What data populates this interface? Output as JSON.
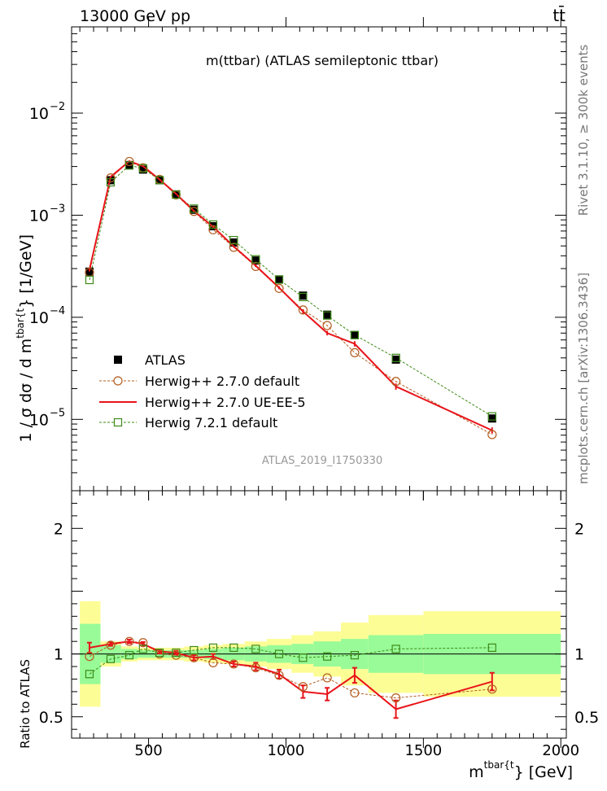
{
  "header": {
    "left": "13000 GeV pp",
    "right": "tt̄"
  },
  "side_labels": {
    "rivet": "Rivet 3.1.10, ≥ 300k events",
    "mcplots": "mcplots.cern.ch [arXiv:1306.3436]"
  },
  "chart_data": {
    "type": "line",
    "title": "m(ttbar) (ATLAS semileptonic ttbar)",
    "analysis_id": "ATLAS_2019_I1750330",
    "xlabel_main": "m",
    "xlabel_sup": "tbar{t",
    "xlabel_tail": "} [GeV]",
    "ylabel_main": "1 / σ dσ / d m",
    "ylabel_sup": "tbar{t",
    "ylabel_tail": "} [1/GeV]",
    "ratio_ylabel": "Ratio to ATLAS",
    "xlim": [
      220,
      2020
    ],
    "ylim_log": [
      2e-06,
      0.07
    ],
    "ratio_ylim": [
      0.33,
      2.3
    ],
    "x_ticks": [
      500,
      1000,
      1500,
      2000
    ],
    "x_tick_labels": [
      "500",
      "1000",
      "1500",
      "2000"
    ],
    "y_ticks": [
      1e-05,
      0.0001,
      0.001,
      0.01
    ],
    "y_tick_mantissa": [
      "10",
      "10",
      "10",
      "10"
    ],
    "y_tick_exponents": [
      "−5",
      "−4",
      "−3",
      "−2"
    ],
    "ratio_ticks": [
      0.5,
      1,
      2
    ],
    "ratio_tick_labels": [
      "0.5",
      "1",
      "2"
    ],
    "bins": [
      [
        250,
        325
      ],
      [
        325,
        400
      ],
      [
        400,
        460
      ],
      [
        460,
        500
      ],
      [
        500,
        570
      ],
      [
        570,
        630
      ],
      [
        630,
        700
      ],
      [
        700,
        770
      ],
      [
        770,
        850
      ],
      [
        850,
        930
      ],
      [
        930,
        1020
      ],
      [
        1020,
        1100
      ],
      [
        1100,
        1200
      ],
      [
        1200,
        1300
      ],
      [
        1300,
        1500
      ],
      [
        1500,
        2000
      ]
    ],
    "x": [
      285,
      362,
      430,
      480,
      540,
      600,
      665,
      735,
      810,
      890,
      975,
      1062,
      1150,
      1250,
      1400,
      1750
    ],
    "series": [
      {
        "name": "ATLAS",
        "style": "data",
        "color": "#000000",
        "values": [
          0.00028,
          0.0022,
          0.0031,
          0.0028,
          0.0022,
          0.0016,
          0.00113,
          0.00078,
          0.00054,
          0.00036,
          0.000235,
          0.000163,
          0.000106,
          6.7e-05,
          3.85e-05,
          1.02e-05
        ]
      },
      {
        "name": "Herwig++ 2.7.0 default",
        "style": "circle-dashed",
        "color": "#b35c1e",
        "values": [
          0.000276,
          0.00232,
          0.00336,
          0.00291,
          0.00224,
          0.00158,
          0.00109,
          0.00072,
          0.000485,
          0.000315,
          0.000192,
          0.000118,
          8.3e-05,
          4.5e-05,
          2.35e-05,
          7.1e-06
        ]
      },
      {
        "name": "Herwig++ 2.7.0 UE-EE-5",
        "style": "line-errors",
        "color": "#e8141a",
        "values": [
          0.000293,
          0.00238,
          0.00338,
          0.00302,
          0.00224,
          0.00162,
          0.0011,
          0.00077,
          0.000494,
          0.00032,
          0.000195,
          0.000114,
          7e-05,
          5.5e-05,
          2.1e-05,
          7.8e-06
        ]
      },
      {
        "name": "Herwig 7.2.1 default",
        "style": "square-dashed",
        "color": "#3d8a16",
        "values": [
          0.000232,
          0.0021,
          0.00307,
          0.00288,
          0.00221,
          0.00159,
          0.00116,
          0.00081,
          0.00057,
          0.00037,
          0.000234,
          0.000158,
          0.000104,
          6.7e-05,
          4e-05,
          1.07e-05
        ]
      }
    ],
    "ratio": {
      "herwig_default": [
        0.98,
        1.07,
        1.1,
        1.09,
        1.0,
        0.99,
        0.97,
        0.93,
        0.92,
        0.89,
        0.83,
        0.74,
        0.81,
        0.69,
        0.65,
        0.72
      ],
      "herwig_ueee5": [
        1.05,
        1.08,
        1.1,
        1.08,
        1.02,
        1.01,
        0.97,
        0.98,
        0.92,
        0.9,
        0.84,
        0.7,
        0.68,
        0.83,
        0.56,
        0.78
      ],
      "herwig_ueee5_err": [
        0.04,
        0.015,
        0.015,
        0.015,
        0.015,
        0.015,
        0.02,
        0.02,
        0.02,
        0.03,
        0.035,
        0.05,
        0.05,
        0.06,
        0.07,
        0.07
      ],
      "herwig721": [
        0.84,
        0.96,
        0.99,
        1.04,
        1.01,
        1.01,
        1.03,
        1.05,
        1.05,
        1.04,
        1.0,
        0.97,
        0.98,
        0.99,
        1.04,
        1.05
      ],
      "band_inner": [
        0.24,
        0.07,
        0.04,
        0.03,
        0.03,
        0.03,
        0.03,
        0.04,
        0.05,
        0.06,
        0.07,
        0.08,
        0.1,
        0.12,
        0.15,
        0.16
      ],
      "band_outer": [
        0.42,
        0.1,
        0.06,
        0.05,
        0.05,
        0.05,
        0.06,
        0.07,
        0.08,
        0.1,
        0.12,
        0.15,
        0.18,
        0.25,
        0.31,
        0.34
      ]
    }
  }
}
